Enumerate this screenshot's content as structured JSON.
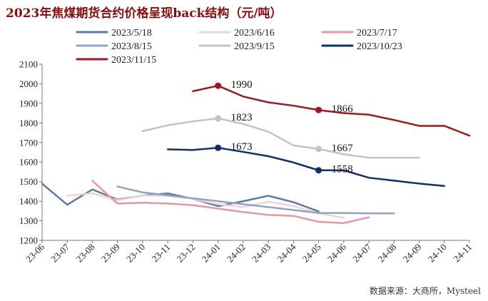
{
  "chart_data": {
    "type": "line",
    "title": "2023年焦煤期货合约价格呈现back结构（元/吨）",
    "source": "数据来源：大商所，Mysteel",
    "categories": [
      "23-06",
      "23-07",
      "23-08",
      "23-09",
      "23-10",
      "23-11",
      "23-12",
      "24-01",
      "24-02",
      "24-03",
      "24-04",
      "24-05",
      "24-06",
      "24-07",
      "24-08",
      "24-09",
      "24-10",
      "24-11"
    ],
    "ylim": [
      1200,
      2100
    ],
    "yticks": [
      1200,
      1300,
      1400,
      1500,
      1600,
      1700,
      1800,
      1900,
      2000,
      2100
    ],
    "legend_position": "top",
    "grid": false,
    "series": [
      {
        "name": "2023/5/18",
        "color": "#5b7aa8",
        "width": 2.5,
        "values": [
          1490,
          1382,
          1460,
          1408,
          1428,
          1440,
          1412,
          1375,
          1400,
          1428,
          1395,
          1348,
          null,
          null,
          null,
          null,
          null,
          null
        ]
      },
      {
        "name": "2023/6/16",
        "color": "#f0d3d3",
        "width": 2.5,
        "values": [
          null,
          1428,
          1440,
          1405,
          1428,
          1428,
          1412,
          1385,
          1370,
          1398,
          1375,
          1338,
          1315,
          null,
          null,
          null,
          null,
          null
        ]
      },
      {
        "name": "2023/7/17",
        "color": "#e896a5",
        "width": 2.5,
        "values": [
          null,
          null,
          1505,
          1388,
          1392,
          1388,
          1380,
          1362,
          1345,
          1330,
          1325,
          1295,
          1288,
          1318,
          null,
          null,
          null,
          null
        ]
      },
      {
        "name": "2023/8/15",
        "color": "#8fa4c4",
        "width": 2.5,
        "values": [
          null,
          null,
          null,
          1475,
          1445,
          1430,
          1415,
          1400,
          1385,
          1370,
          1355,
          1340,
          1340,
          1338,
          1338,
          null,
          null,
          null
        ]
      },
      {
        "name": "2023/9/15",
        "color": "#c3c3c3",
        "width": 2.5,
        "values": [
          null,
          null,
          null,
          null,
          1758,
          1788,
          1808,
          1823,
          1795,
          1755,
          1685,
          1667,
          1640,
          1622,
          1622,
          1622,
          null,
          null
        ]
      },
      {
        "name": "2023/10/23",
        "color": "#0f2f68",
        "width": 2.5,
        "values": [
          null,
          null,
          null,
          null,
          null,
          1665,
          1662,
          1673,
          1652,
          1630,
          1598,
          1558,
          1558,
          1520,
          1505,
          1490,
          1478,
          null
        ]
      },
      {
        "name": "2023/11/15",
        "color": "#a3161d",
        "width": 2.5,
        "values": [
          null,
          null,
          null,
          null,
          null,
          null,
          1962,
          1990,
          1935,
          1905,
          1888,
          1866,
          1850,
          1842,
          1815,
          1785,
          1785,
          1735
        ]
      }
    ],
    "annotations": [
      {
        "series": 6,
        "category": "24-01",
        "value": 1990,
        "text": "1990"
      },
      {
        "series": 6,
        "category": "24-05",
        "value": 1866,
        "text": "1866"
      },
      {
        "series": 4,
        "category": "24-01",
        "value": 1823,
        "text": "1823"
      },
      {
        "series": 4,
        "category": "24-05",
        "value": 1667,
        "text": "1667"
      },
      {
        "series": 5,
        "category": "24-01",
        "value": 1673,
        "text": "1673"
      },
      {
        "series": 5,
        "category": "24-05",
        "value": 1558,
        "text": "1558"
      }
    ]
  }
}
